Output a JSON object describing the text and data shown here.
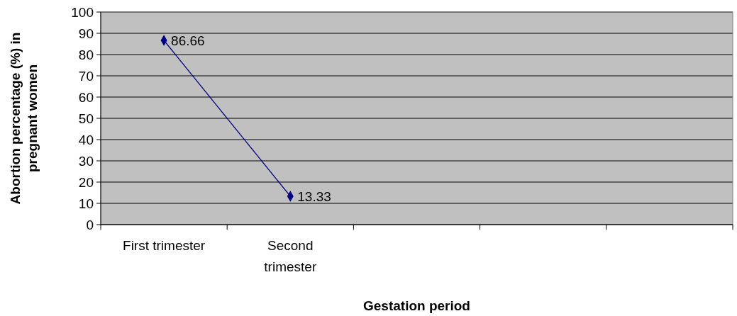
{
  "chart_data": {
    "type": "line",
    "xlabel": "Gestation period",
    "ylabel": "Abortion percentage (%) in pregnant women",
    "categories": [
      "First trimester",
      "Second trimester",
      null,
      null,
      null
    ],
    "series": [
      {
        "color": "#000080",
        "values": [
          86.66,
          13.33,
          null,
          null,
          null
        ]
      }
    ],
    "ylim": [
      0,
      100
    ],
    "yticks": [
      0,
      10,
      20,
      30,
      40,
      50,
      60,
      70,
      80,
      90,
      100
    ],
    "grid": "y",
    "marker": "diamond",
    "data_labels": true
  }
}
